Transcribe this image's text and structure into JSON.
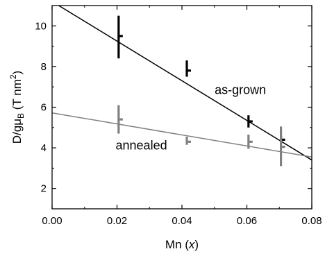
{
  "chart_data": {
    "type": "scatter",
    "xlabel": {
      "main": "Mn (",
      "italic": "x",
      "tail": ")"
    },
    "ylabel": {
      "prefix": "D/g",
      "mu": "μ",
      "sub": "B",
      "unit": " (T nm",
      "sup": "2",
      "close": ")"
    },
    "xlim": [
      0.0,
      0.08
    ],
    "ylim": [
      1,
      11
    ],
    "xticks": [
      0.0,
      0.02,
      0.04,
      0.06,
      0.08
    ],
    "xtick_labels": [
      "0.00",
      "0.02",
      "0.04",
      "0.06",
      "0.08"
    ],
    "yticks": [
      2,
      4,
      6,
      8,
      10
    ],
    "ytick_labels": [
      "2",
      "4",
      "6",
      "8",
      "10"
    ],
    "grid": false,
    "series": [
      {
        "name": "as-grown",
        "color": "#000000",
        "points": [
          {
            "x": 0.0205,
            "y": 9.5,
            "ylow": 8.4,
            "yhigh": 10.5
          },
          {
            "x": 0.0415,
            "y": 7.8,
            "ylow": 7.5,
            "yhigh": 8.3
          },
          {
            "x": 0.0605,
            "y": 5.3,
            "ylow": 5.0,
            "yhigh": 5.6
          },
          {
            "x": 0.0705,
            "y": 4.4,
            "ylow": 4.2,
            "yhigh": 4.6
          }
        ],
        "fit": {
          "x": [
            0.0,
            0.08
          ],
          "y": [
            11.2,
            3.4
          ]
        }
      },
      {
        "name": "annealed",
        "color": "#808080",
        "points": [
          {
            "x": 0.0205,
            "y": 5.4,
            "ylow": 4.7,
            "yhigh": 6.1
          },
          {
            "x": 0.0415,
            "y": 4.3,
            "ylow": 4.15,
            "yhigh": 4.55
          },
          {
            "x": 0.0605,
            "y": 4.3,
            "ylow": 3.95,
            "yhigh": 4.65
          },
          {
            "x": 0.0705,
            "y": 4.05,
            "ylow": 3.1,
            "yhigh": 5.05
          }
        ],
        "fit": {
          "x": [
            0.0,
            0.08
          ],
          "y": [
            5.72,
            3.55
          ]
        }
      }
    ],
    "annotations": [
      {
        "text": "as-grown",
        "x": 0.058,
        "y": 6.65
      },
      {
        "text": "annealed",
        "x": 0.0275,
        "y": 3.92
      }
    ]
  }
}
